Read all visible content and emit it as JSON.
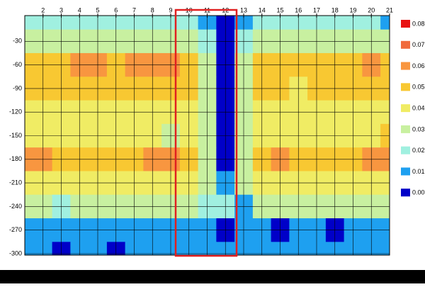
{
  "chart_data": {
    "type": "heatmap",
    "x": [
      1,
      2,
      3,
      4,
      5,
      6,
      7,
      8,
      9,
      10,
      11,
      12,
      13,
      14,
      15,
      16,
      17,
      18,
      19,
      20,
      21
    ],
    "y": [
      0,
      -30,
      -60,
      -90,
      -120,
      -150,
      -180,
      -210,
      -240,
      -270,
      -300
    ],
    "values": [
      [
        0.02,
        0.02,
        0.02,
        0.02,
        0.02,
        0.02,
        0.02,
        0.02,
        0.02,
        0.02,
        0.01,
        0.0,
        0.01,
        0.02,
        0.02,
        0.02,
        0.02,
        0.02,
        0.02,
        0.02,
        0.01
      ],
      [
        0.03,
        0.03,
        0.03,
        0.03,
        0.03,
        0.03,
        0.03,
        0.03,
        0.03,
        0.03,
        0.02,
        0.0,
        0.02,
        0.03,
        0.03,
        0.03,
        0.03,
        0.03,
        0.03,
        0.03,
        0.03
      ],
      [
        0.05,
        0.05,
        0.05,
        0.06,
        0.06,
        0.05,
        0.06,
        0.06,
        0.06,
        0.05,
        0.03,
        0.0,
        0.03,
        0.05,
        0.05,
        0.05,
        0.05,
        0.05,
        0.05,
        0.06,
        0.05
      ],
      [
        0.05,
        0.05,
        0.05,
        0.05,
        0.05,
        0.05,
        0.05,
        0.05,
        0.05,
        0.05,
        0.03,
        0.0,
        0.03,
        0.05,
        0.05,
        0.04,
        0.05,
        0.05,
        0.05,
        0.05,
        0.05
      ],
      [
        0.04,
        0.04,
        0.04,
        0.04,
        0.04,
        0.04,
        0.04,
        0.04,
        0.04,
        0.04,
        0.03,
        0.0,
        0.03,
        0.04,
        0.04,
        0.04,
        0.04,
        0.04,
        0.04,
        0.04,
        0.04
      ],
      [
        0.04,
        0.04,
        0.04,
        0.04,
        0.04,
        0.04,
        0.04,
        0.04,
        0.03,
        0.04,
        0.03,
        0.0,
        0.03,
        0.04,
        0.04,
        0.04,
        0.04,
        0.04,
        0.04,
        0.04,
        0.05
      ],
      [
        0.06,
        0.06,
        0.05,
        0.05,
        0.05,
        0.05,
        0.05,
        0.06,
        0.06,
        0.05,
        0.03,
        0.0,
        0.03,
        0.05,
        0.06,
        0.05,
        0.05,
        0.05,
        0.05,
        0.06,
        0.06
      ],
      [
        0.04,
        0.04,
        0.04,
        0.04,
        0.04,
        0.04,
        0.04,
        0.04,
        0.04,
        0.04,
        0.03,
        0.01,
        0.03,
        0.04,
        0.04,
        0.04,
        0.04,
        0.04,
        0.04,
        0.04,
        0.04
      ],
      [
        0.03,
        0.03,
        0.02,
        0.03,
        0.03,
        0.03,
        0.03,
        0.03,
        0.03,
        0.03,
        0.02,
        0.02,
        0.01,
        0.03,
        0.03,
        0.03,
        0.03,
        0.03,
        0.03,
        0.03,
        0.03
      ],
      [
        0.01,
        0.01,
        0.01,
        0.01,
        0.01,
        0.01,
        0.01,
        0.01,
        0.01,
        0.01,
        0.01,
        0.0,
        0.01,
        0.01,
        0.0,
        0.01,
        0.01,
        0.0,
        0.01,
        0.01,
        0.01
      ],
      [
        0.01,
        0.01,
        0.0,
        0.01,
        0.01,
        0.0,
        0.01,
        0.01,
        0.01,
        0.01,
        0.01,
        0.01,
        0.01,
        0.01,
        0.01,
        0.01,
        0.01,
        0.01,
        0.01,
        0.01,
        0.01
      ]
    ],
    "xlim": [
      1,
      21
    ],
    "ylim": [
      0,
      -300
    ],
    "xticks": [
      2,
      3,
      4,
      5,
      6,
      7,
      8,
      9,
      10,
      11,
      12,
      13,
      14,
      15,
      16,
      17,
      18,
      19,
      20,
      21
    ],
    "yticks": [
      -30,
      -60,
      -90,
      -120,
      -150,
      -180,
      -210,
      -240,
      -270,
      -300
    ],
    "grid": true,
    "colorbar": [
      {
        "value": 0.08,
        "label": "0.08",
        "color": "#e81010"
      },
      {
        "value": 0.07,
        "label": "0.07",
        "color": "#f06a3c"
      },
      {
        "value": 0.06,
        "label": "0.06",
        "color": "#f89640"
      },
      {
        "value": 0.05,
        "label": "0.05",
        "color": "#f8c832"
      },
      {
        "value": 0.04,
        "label": "0.04",
        "color": "#f0ec64"
      },
      {
        "value": 0.03,
        "label": "0.03",
        "color": "#c8f0a0"
      },
      {
        "value": 0.02,
        "label": "0.02",
        "color": "#a0f0e0"
      },
      {
        "value": 0.01,
        "label": "0.01",
        "color": "#1ea0f0"
      },
      {
        "value": 0,
        "label": "0.00",
        "color": "#0000c8"
      }
    ]
  }
}
